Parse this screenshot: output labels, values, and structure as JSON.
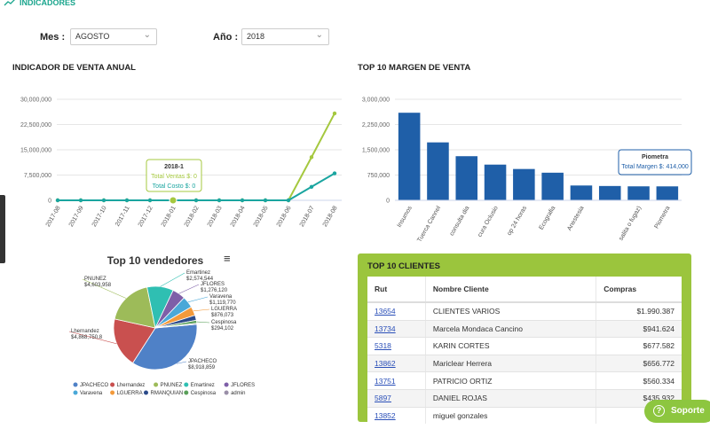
{
  "header": {
    "title": "INDICADORES"
  },
  "filters": {
    "month_label": "Mes :",
    "month_value": "AGOSTO",
    "year_label": "Año :",
    "year_value": "2018"
  },
  "chart_data": [
    {
      "type": "line",
      "title": "INDICADOR DE VENTA ANUAL",
      "categories": [
        "2017-08",
        "2017-09",
        "2017-10",
        "2017-11",
        "2017-12",
        "2018-01",
        "2018-02",
        "2018-03",
        "2018-04",
        "2018-05",
        "2018-06",
        "2018-07",
        "2018-08"
      ],
      "series": [
        {
          "name": "Total Ventas $",
          "color": "#a5c83f",
          "values": [
            0,
            0,
            0,
            0,
            0,
            0,
            0,
            0,
            0,
            0,
            0,
            12800000,
            25800000
          ]
        },
        {
          "name": "Total Costo $",
          "color": "#1aa5a0",
          "values": [
            0,
            0,
            0,
            0,
            0,
            0,
            0,
            0,
            0,
            0,
            0,
            4000000,
            8000000
          ]
        }
      ],
      "ylim": [
        0,
        30000000
      ],
      "yticks": [
        0,
        {
          "value": 7500000,
          "label": "7,500,000"
        },
        {
          "value": 15000000,
          "label": "15,000,000"
        },
        {
          "value": 22500000,
          "label": "22,500,000"
        },
        {
          "value": 30000000,
          "label": "30,000,000"
        }
      ],
      "grid": true,
      "tooltip": {
        "title": "2018-1",
        "lines": [
          "Total Ventas $: 0",
          "Total Costo $: 0"
        ]
      }
    },
    {
      "type": "bar",
      "title": "TOP 10 MARGEN DE VENTA",
      "categories": [
        "Insumos",
        "Tuerca Cannel",
        "consulta dia",
        "cura Oclusio",
        "op 24 horas",
        "Ecografia",
        "Anestesia",
        null,
        "salita o fugaz)",
        "Piometra"
      ],
      "values": [
        2600000,
        1720000,
        1310000,
        1060000,
        930000,
        820000,
        440000,
        425000,
        415000,
        414000
      ],
      "color": "#1f5fa8",
      "ylim": [
        0,
        3000000
      ],
      "yticks": [
        0,
        {
          "value": 750000,
          "label": "750,000"
        },
        {
          "value": 1500000,
          "label": "1,500,000"
        },
        {
          "value": 2250000,
          "label": "2,250,000"
        },
        {
          "value": 3000000,
          "label": "3,000,000"
        }
      ],
      "grid": true,
      "tooltip": {
        "title": "Piometra",
        "lines": [
          "Total Margen $: 414,000"
        ]
      }
    },
    {
      "type": "pie",
      "title": "Top 10 vendedores",
      "categories": [
        "JPACHECO",
        "Lhernandez",
        "PNUNEZ",
        "Emartinez",
        "JFLORES",
        "Varavena",
        "LGUERRA",
        "RMANQUIAN",
        "Cespinosa",
        "admin"
      ],
      "values": [
        8918859,
        4868750.8,
        4603958,
        2574544,
        1276120,
        1119770,
        876073,
        500000,
        294102,
        100000
      ],
      "value_labels": [
        "$8,918,859",
        "$4,868,750.8",
        "$4,603,958",
        "$2,574,544",
        "$1,276,120",
        "$1,119,770",
        "$876,073",
        null,
        "$294,102",
        null
      ],
      "colors": [
        "#4f81c7",
        "#c9504f",
        "#9dbb59",
        "#2fbfb2",
        "#7e5fa8",
        "#4aa8d8",
        "#f39a3b",
        "#2c4b8a",
        "#5aa05a",
        "#9a8fa8"
      ],
      "legend": "bottom"
    }
  ],
  "table": {
    "title": "TOP 10 CLIENTES",
    "columns": [
      "Rut",
      "Nombre Cliente",
      "Compras"
    ],
    "rows": [
      [
        "13654",
        "CLIENTES VARIOS",
        "$1.990.387"
      ],
      [
        "13734",
        "Marcela Mondaca Cancino",
        "$941.624"
      ],
      [
        "5318",
        "KARIN CORTES",
        "$677.582"
      ],
      [
        "13862",
        "Mariclear Herrera",
        "$656.772"
      ],
      [
        "13751",
        "PATRICIO ORTIZ",
        "$560.334"
      ],
      [
        "5897",
        "DANIEL ROJAS",
        "$435.932"
      ],
      [
        "13852",
        "miguel gonzales"
      ]
    ]
  },
  "support": {
    "icon": "?",
    "label": "Soporte"
  }
}
